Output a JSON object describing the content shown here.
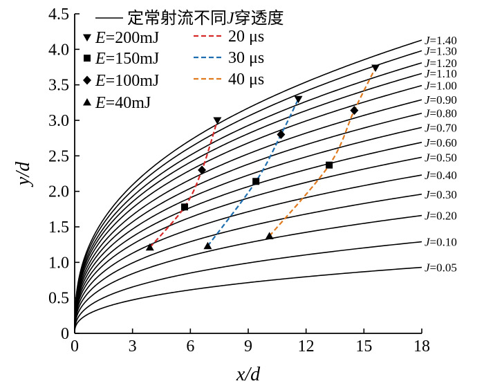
{
  "chart_data": {
    "type": "line",
    "xlabel": "x/d",
    "ylabel": "y/d",
    "xlim": [
      0,
      18
    ],
    "ylim": [
      0,
      4.5
    ],
    "xticks": [
      "0",
      "3",
      "6",
      "9",
      "12",
      "15",
      "18"
    ],
    "yticks": [
      "0",
      "0.5",
      "1.0",
      "1.5",
      "2.0",
      "2.5",
      "3.0",
      "3.5",
      "4.0",
      "4.5"
    ],
    "grid": false,
    "legend_placement": "top-left",
    "legend": {
      "steady_label": "定常射流不同",
      "steady_var": "J",
      "steady_suffix": "穿透度",
      "energy_var": "E",
      "energies": [
        "=200mJ",
        "=150mJ",
        "=100mJ",
        "=40mJ"
      ],
      "times": [
        "20 μs",
        "30 μs",
        "40 μs"
      ]
    },
    "curve_var": "J",
    "curve_labels": [
      "=1.40",
      "=1.30",
      "=1.20",
      "=1.10",
      "=1.00",
      "=0.90",
      "=0.80",
      "=0.70",
      "=0.60",
      "=0.50",
      "=0.40",
      "=0.30",
      "=0.20",
      "=0.10",
      "=0.05"
    ],
    "curve_end_values": [
      4.13,
      3.98,
      3.81,
      3.66,
      3.49,
      3.29,
      3.1,
      2.9,
      2.69,
      2.48,
      2.23,
      1.96,
      1.66,
      1.29,
      0.93
    ],
    "curve_color": "#000000",
    "pulsed_series": [
      {
        "name": "20 μs",
        "color": "#d62a2a",
        "points": [
          {
            "x": 3.9,
            "y": 1.21,
            "E": 40
          },
          {
            "x": 5.7,
            "y": 1.78,
            "E": 150
          },
          {
            "x": 6.6,
            "y": 2.3,
            "E": 100
          },
          {
            "x": 7.4,
            "y": 3.0,
            "E": 200
          }
        ]
      },
      {
        "name": "30 μs",
        "color": "#1f6fb0",
        "points": [
          {
            "x": 6.9,
            "y": 1.23,
            "E": 40
          },
          {
            "x": 9.4,
            "y": 2.14,
            "E": 150
          },
          {
            "x": 10.7,
            "y": 2.8,
            "E": 100
          },
          {
            "x": 11.6,
            "y": 3.3,
            "E": 200
          }
        ]
      },
      {
        "name": "40 μs",
        "color": "#e07a1f",
        "points": [
          {
            "x": 10.1,
            "y": 1.37,
            "E": 40
          },
          {
            "x": 13.2,
            "y": 2.37,
            "E": 150
          },
          {
            "x": 14.5,
            "y": 3.14,
            "E": 100
          },
          {
            "x": 15.6,
            "y": 3.74,
            "E": 200
          }
        ]
      }
    ],
    "markers": {
      "200": "triangle-down",
      "150": "square",
      "100": "diamond",
      "40": "triangle-up"
    }
  }
}
